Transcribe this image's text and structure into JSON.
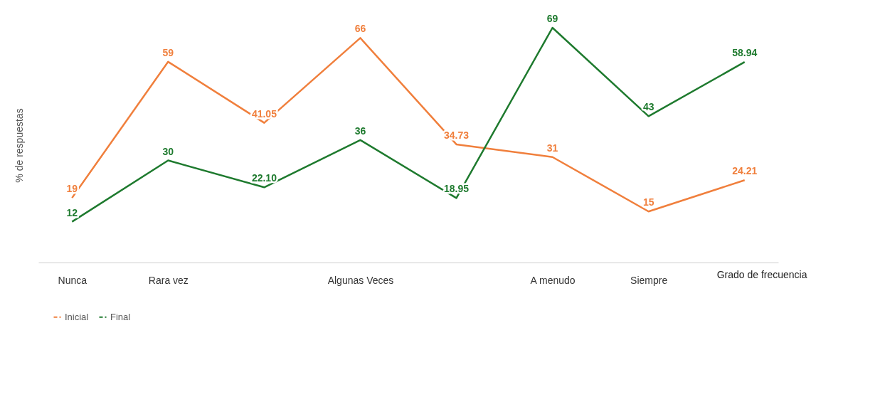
{
  "chart_data": {
    "type": "line",
    "categories": [
      "Nunca",
      "Rara vez",
      null,
      "Algunas Veces",
      null,
      "A menudo",
      "Siempre",
      null
    ],
    "xlabel": "Grado de frecuencia",
    "ylabel": "% de respuestas",
    "series": [
      {
        "name": "Inicial",
        "color": "#f07f3c",
        "values": [
          19,
          59,
          41.05,
          66,
          34.73,
          31,
          15,
          24.21
        ],
        "value_labels": [
          "19",
          "59",
          "41.05",
          "66",
          "34.73",
          "31",
          "15",
          "24.21"
        ]
      },
      {
        "name": "Final",
        "color": "#1e7a2e",
        "values": [
          12,
          30,
          22.1,
          36,
          18.95,
          69,
          43,
          58.94
        ],
        "value_labels": [
          "12",
          "30",
          "22.10",
          "36",
          "18.95",
          "69",
          "43",
          "58.94"
        ]
      }
    ],
    "legend": "bottom",
    "grid": false,
    "marker": "none",
    "line_style": "solid"
  }
}
